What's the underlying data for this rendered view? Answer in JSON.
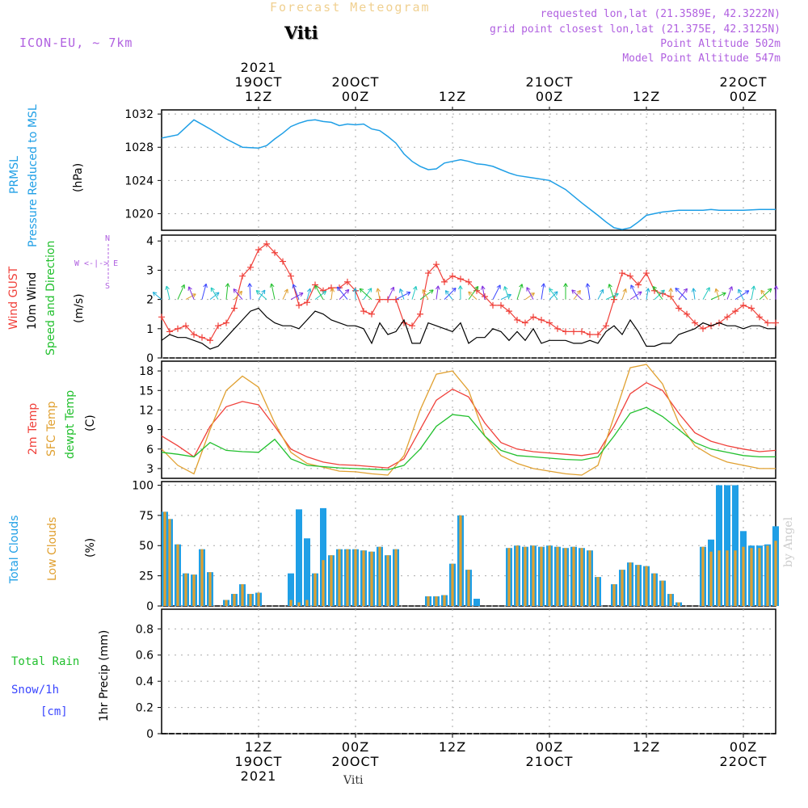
{
  "header": {
    "product": "Forecast Meteogram",
    "location": "Viti",
    "model": "ICON-EU, ~ 7km",
    "requested": "requested lon,lat (21.3589E, 42.3222N)",
    "gridpoint": "grid point closest lon,lat (21.375E, 42.3125N)",
    "point_alt": "Point Altitude 502m",
    "model_alt": "Model Point Altitude 547m",
    "credit": "by Angel",
    "footer_location": "Viti"
  },
  "colors": {
    "pressure": "#1f9fe6",
    "gust": "#f0403a",
    "wind": "#000000",
    "direction": "#22c02e",
    "temp2m": "#f0403a",
    "sfc": "#e0a030",
    "dewpt": "#22c02e",
    "total_clouds": "#1f9fe6",
    "low_clouds": "#e0a030",
    "rain": "#22c02e",
    "snow": "#3a46ff",
    "purple": "#b060e0"
  },
  "time_axis": {
    "top_labels": [
      {
        "x": 12,
        "lines": [
          "2021",
          "19OCT",
          "12Z"
        ]
      },
      {
        "x": 24,
        "lines": [
          "20OCT",
          "00Z"
        ]
      },
      {
        "x": 36,
        "lines": [
          "12Z"
        ]
      },
      {
        "x": 48,
        "lines": [
          "21OCT",
          "00Z"
        ]
      },
      {
        "x": 60,
        "lines": [
          "12Z"
        ]
      },
      {
        "x": 72,
        "lines": [
          "22OCT",
          "00Z"
        ]
      }
    ],
    "bottom_labels": [
      {
        "x": 12,
        "lines": [
          "12Z",
          "19OCT",
          "2021"
        ]
      },
      {
        "x": 24,
        "lines": [
          "00Z",
          "20OCT"
        ]
      },
      {
        "x": 36,
        "lines": [
          "12Z"
        ]
      },
      {
        "x": 48,
        "lines": [
          "00Z",
          "21OCT"
        ]
      },
      {
        "x": 60,
        "lines": [
          "12Z"
        ]
      },
      {
        "x": 72,
        "lines": [
          "00Z",
          "22OCT"
        ]
      }
    ]
  },
  "panels": {
    "pressure": {
      "label_lines": [
        "PRMSL",
        "Pressure Reduced to MSL"
      ],
      "unit": "(hPa)",
      "yticks": [
        "1020",
        "1024",
        "1028",
        "1032"
      ]
    },
    "wind": {
      "label_lines": [
        "Wind GUST",
        "10m Wind",
        "Speed and Direction"
      ],
      "unit": "(m/s)",
      "compass": [
        "N",
        "W <-|-> E",
        "S"
      ],
      "yticks": [
        "0",
        "1",
        "2",
        "3",
        "4"
      ]
    },
    "temp": {
      "label_lines": [
        "2m Temp",
        "SFC Temp",
        "dewpt Temp"
      ],
      "unit": "(C)",
      "yticks": [
        "3",
        "6",
        "9",
        "12",
        "15",
        "18"
      ]
    },
    "clouds": {
      "label_lines": [
        "Total Clouds",
        "Low Clouds"
      ],
      "unit": "(%)",
      "yticks": [
        "0",
        "25",
        "50",
        "75",
        "100"
      ]
    },
    "precip": {
      "label_lines": [
        "Total  Rain",
        "Snow/1h",
        "[cm]"
      ],
      "unit": "1hr Precip (mm)",
      "yticks": [
        "0",
        "0.2",
        "0.4",
        "0.6",
        "0.8"
      ]
    }
  },
  "chart_data": [
    {
      "type": "line",
      "x": [
        0,
        2,
        4,
        6,
        7,
        8,
        10,
        12,
        13,
        14,
        15,
        16,
        17,
        18,
        19,
        20,
        21,
        22,
        23,
        24,
        25,
        26,
        27,
        28,
        29,
        30,
        31,
        32,
        33,
        34,
        35,
        36,
        37,
        38,
        39,
        40,
        41,
        42,
        43,
        44,
        46,
        48,
        50,
        52,
        54,
        55,
        56,
        57,
        58,
        59,
        60,
        61,
        62,
        63,
        64,
        65,
        66,
        67,
        68,
        69,
        70,
        72,
        74,
        76
      ],
      "series": [
        {
          "name": "PRMSL",
          "values": [
            1029.1,
            1029.5,
            1031.3,
            1030.2,
            1029.6,
            1029.0,
            1028.0,
            1027.9,
            1028.2,
            1029.0,
            1029.7,
            1030.5,
            1030.9,
            1031.2,
            1031.3,
            1031.1,
            1031.0,
            1030.6,
            1030.8,
            1030.7,
            1030.8,
            1030.2,
            1030.0,
            1029.3,
            1028.5,
            1027.2,
            1026.3,
            1025.7,
            1025.3,
            1025.4,
            1026.1,
            1026.3,
            1026.5,
            1026.3,
            1026.0,
            1025.9,
            1025.7,
            1025.3,
            1024.9,
            1024.6,
            1024.3,
            1024.0,
            1022.9,
            1021.3,
            1019.8,
            1019.0,
            1018.3,
            1018.1,
            1018.3,
            1019.0,
            1019.8,
            1020.0,
            1020.2,
            1020.3,
            1020.4,
            1020.4,
            1020.4,
            1020.4,
            1020.5,
            1020.4,
            1020.4,
            1020.4,
            1020.5,
            1020.5
          ]
        }
      ],
      "ylabel": "(hPa)",
      "ylim": [
        1018,
        1032.5
      ]
    },
    {
      "type": "line",
      "x": [
        0,
        1,
        2,
        3,
        4,
        5,
        6,
        7,
        8,
        9,
        10,
        11,
        12,
        13,
        14,
        15,
        16,
        17,
        18,
        19,
        20,
        21,
        22,
        23,
        24,
        25,
        26,
        27,
        28,
        29,
        30,
        31,
        32,
        33,
        34,
        35,
        36,
        37,
        38,
        39,
        40,
        41,
        42,
        43,
        44,
        45,
        46,
        47,
        48,
        49,
        50,
        51,
        52,
        53,
        54,
        55,
        56,
        57,
        58,
        59,
        60,
        61,
        62,
        63,
        64,
        65,
        66,
        67,
        68,
        69,
        70,
        71,
        72,
        73,
        74,
        75,
        76
      ],
      "series": [
        {
          "name": "Wind GUST",
          "values": [
            1.4,
            0.9,
            1.0,
            1.1,
            0.8,
            0.7,
            0.6,
            1.1,
            1.2,
            1.7,
            2.8,
            3.1,
            3.7,
            3.9,
            3.6,
            3.3,
            2.8,
            1.8,
            1.9,
            2.5,
            2.3,
            2.4,
            2.4,
            2.6,
            2.3,
            1.6,
            1.5,
            2.0,
            2.0,
            2.0,
            1.2,
            1.1,
            1.5,
            2.9,
            3.2,
            2.6,
            2.8,
            2.7,
            2.6,
            2.3,
            2.1,
            1.8,
            1.8,
            1.6,
            1.3,
            1.2,
            1.4,
            1.3,
            1.2,
            1.0,
            0.9,
            0.9,
            0.9,
            0.8,
            0.8,
            1.1,
            2.0,
            2.9,
            2.8,
            2.5,
            2.9,
            2.3,
            2.2,
            2.1,
            1.7,
            1.5,
            1.2,
            1.0,
            1.1,
            1.2,
            1.4,
            1.6,
            1.8,
            1.7,
            1.4,
            1.2,
            1.2
          ]
        },
        {
          "name": "10m Wind",
          "values": [
            0.6,
            0.8,
            0.7,
            0.7,
            0.6,
            0.5,
            0.3,
            0.4,
            0.7,
            1.0,
            1.3,
            1.6,
            1.7,
            1.4,
            1.2,
            1.1,
            1.1,
            1.0,
            1.3,
            1.6,
            1.5,
            1.3,
            1.2,
            1.1,
            1.1,
            1.0,
            0.5,
            1.2,
            0.8,
            0.9,
            1.3,
            0.5,
            0.5,
            1.2,
            1.1,
            1.0,
            0.9,
            1.2,
            0.5,
            0.7,
            0.7,
            1.0,
            0.9,
            0.6,
            0.9,
            0.6,
            1.0,
            0.5,
            0.6,
            0.6,
            0.6,
            0.5,
            0.5,
            0.6,
            0.5,
            0.9,
            1.1,
            0.8,
            1.3,
            0.9,
            0.4,
            0.4,
            0.5,
            0.5,
            0.8,
            0.9,
            1.0,
            1.2,
            1.1,
            1.2,
            1.1,
            1.1,
            1.0,
            1.1,
            1.1,
            1.0,
            1.0
          ]
        }
      ],
      "ylabel": "(m/s)",
      "ylim": [
        0,
        4.2
      ]
    },
    {
      "type": "line",
      "x": [
        0,
        2,
        4,
        6,
        8,
        10,
        12,
        14,
        16,
        18,
        20,
        22,
        24,
        26,
        28,
        30,
        32,
        34,
        36,
        38,
        40,
        42,
        44,
        46,
        48,
        50,
        52,
        54,
        56,
        58,
        60,
        62,
        64,
        66,
        68,
        70,
        72,
        74,
        76
      ],
      "series": [
        {
          "name": "2m Temp",
          "values": [
            8.0,
            6.5,
            4.8,
            9.5,
            12.5,
            13.3,
            12.8,
            9.5,
            6.0,
            4.8,
            4.0,
            3.6,
            3.5,
            3.3,
            3.1,
            4.5,
            9.0,
            13.5,
            15.2,
            14.0,
            10.0,
            7.0,
            6.0,
            5.6,
            5.4,
            5.2,
            5.0,
            5.4,
            9.5,
            14.5,
            16.2,
            15.0,
            11.5,
            8.5,
            7.2,
            6.5,
            6.0,
            5.6,
            5.8
          ]
        },
        {
          "name": "SFC Temp",
          "values": [
            6.0,
            3.5,
            2.2,
            9.0,
            15.0,
            17.2,
            15.5,
            10.0,
            5.5,
            3.8,
            3.2,
            2.6,
            2.5,
            2.2,
            2.0,
            5.0,
            12.0,
            17.5,
            18.0,
            15.0,
            8.0,
            5.0,
            3.8,
            3.0,
            2.6,
            2.2,
            2.0,
            3.5,
            11.0,
            18.5,
            19.0,
            16.0,
            10.0,
            6.5,
            5.0,
            4.0,
            3.5,
            3.0,
            3.0
          ]
        },
        {
          "name": "dewpt Temp",
          "values": [
            5.5,
            5.2,
            4.8,
            7.0,
            5.8,
            5.6,
            5.5,
            7.5,
            4.5,
            3.5,
            3.3,
            3.1,
            3.0,
            2.9,
            2.8,
            3.5,
            6.0,
            9.5,
            11.3,
            11.0,
            8.0,
            5.8,
            5.0,
            4.8,
            4.6,
            4.4,
            4.3,
            4.8,
            8.0,
            11.5,
            12.4,
            11.0,
            9.0,
            7.0,
            6.0,
            5.5,
            5.0,
            4.8,
            4.8
          ]
        }
      ],
      "ylabel": "(C)",
      "ylim": [
        1.5,
        19.5
      ]
    },
    {
      "type": "bar",
      "x": [
        0,
        1,
        2,
        3,
        4,
        5,
        6,
        7,
        8,
        9,
        10,
        11,
        12,
        13,
        14,
        15,
        16,
        17,
        18,
        19,
        20,
        21,
        22,
        23,
        24,
        25,
        26,
        27,
        28,
        29,
        30,
        31,
        32,
        33,
        34,
        35,
        36,
        37,
        38,
        39,
        40,
        41,
        42,
        43,
        44,
        45,
        46,
        47,
        48,
        49,
        50,
        51,
        52,
        53,
        54,
        55,
        56,
        57,
        58,
        59,
        60,
        61,
        62,
        63,
        64,
        65,
        66,
        67,
        68,
        69,
        70,
        71,
        72,
        73,
        74,
        75,
        76
      ],
      "series": [
        {
          "name": "Total Clouds",
          "values": [
            78,
            72,
            51,
            27,
            26,
            47,
            28,
            0,
            5,
            10,
            18,
            10,
            11,
            0,
            0,
            0,
            27,
            80,
            56,
            27,
            81,
            42,
            47,
            47,
            47,
            46,
            45,
            49,
            42,
            47,
            0,
            0,
            0,
            8,
            8,
            9,
            35,
            75,
            30,
            6,
            0,
            0,
            0,
            48,
            50,
            49,
            50,
            49,
            50,
            49,
            48,
            49,
            48,
            46,
            24,
            0,
            18,
            30,
            36,
            34,
            33,
            27,
            21,
            10,
            3,
            0,
            0,
            49,
            55,
            100,
            100,
            100,
            62,
            50,
            50,
            51,
            66
          ]
        },
        {
          "name": "Low Clouds",
          "values": [
            78,
            72,
            51,
            27,
            26,
            47,
            28,
            0,
            5,
            10,
            18,
            10,
            11,
            0,
            0,
            0,
            5,
            3,
            5,
            27,
            38,
            42,
            47,
            47,
            47,
            46,
            45,
            49,
            42,
            47,
            0,
            0,
            0,
            8,
            8,
            9,
            35,
            75,
            30,
            0,
            0,
            0,
            0,
            48,
            50,
            49,
            50,
            49,
            50,
            49,
            48,
            49,
            48,
            46,
            24,
            0,
            18,
            30,
            36,
            34,
            33,
            27,
            21,
            10,
            3,
            0,
            0,
            49,
            45,
            46,
            46,
            46,
            49,
            48,
            48,
            50,
            54
          ]
        }
      ],
      "ylabel": "(%)",
      "ylim": [
        0,
        103
      ]
    },
    {
      "type": "bar",
      "series": [
        {
          "name": "Total  Rain",
          "values": []
        },
        {
          "name": "Snow/1h",
          "values": []
        }
      ],
      "ylabel": "1hr Precip (mm)",
      "ylim": [
        0,
        0.95
      ]
    }
  ]
}
